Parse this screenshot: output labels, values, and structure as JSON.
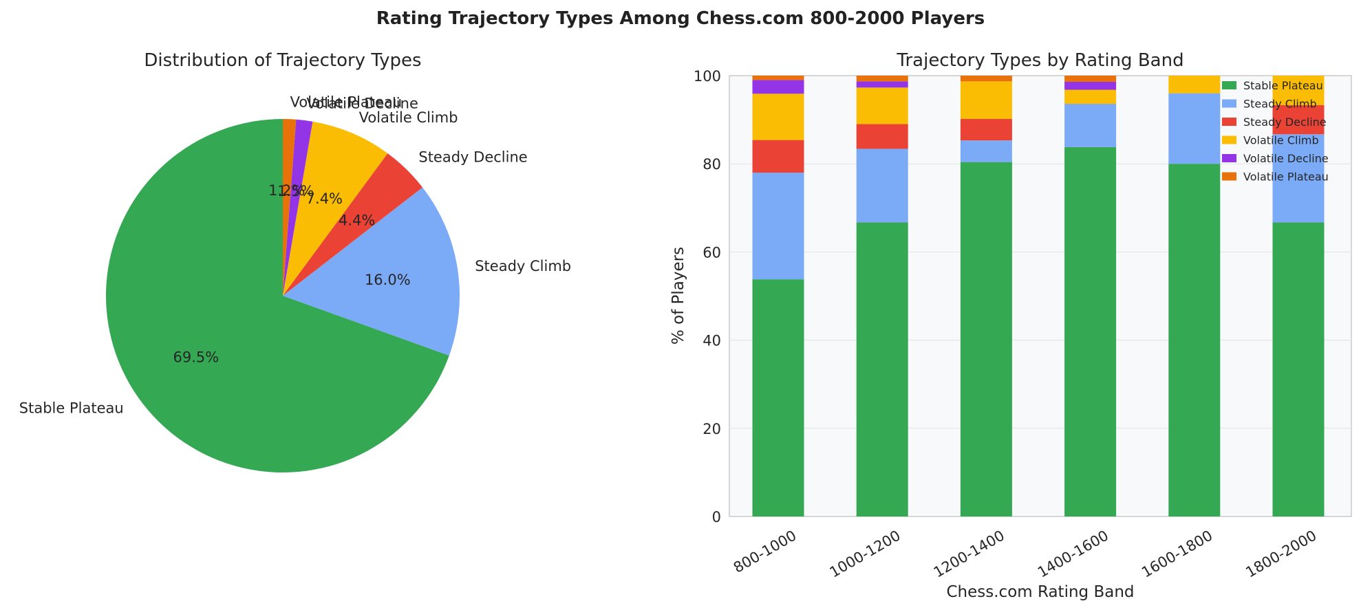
{
  "figure": {
    "suptitle": "Rating Trajectory Types Among Chess.com 800-2000 Players"
  },
  "chart_data": [
    {
      "type": "pie",
      "title": "Distribution of Trajectory Types",
      "labels": [
        "Stable Plateau",
        "Steady Climb",
        "Steady Decline",
        "Volatile Climb",
        "Volatile Decline",
        "Volatile Plateau"
      ],
      "values": [
        69.5,
        16.0,
        4.4,
        7.4,
        1.5,
        1.2
      ],
      "value_labels": [
        "69.5%",
        "16.0%",
        "4.4%",
        "7.4%",
        "1.5%",
        "1.2%"
      ],
      "colors": [
        "#34a853",
        "#7baaf7",
        "#ea4335",
        "#fbbc04",
        "#9334e6",
        "#e8710a"
      ]
    },
    {
      "type": "bar",
      "stacked": true,
      "title": "Trajectory Types by Rating Band",
      "xlabel": "Chess.com Rating Band",
      "ylabel": "% of Players",
      "ylim": [
        0,
        100
      ],
      "yticks": [
        0,
        20,
        40,
        60,
        80,
        100
      ],
      "categories": [
        "800-1000",
        "1000-1200",
        "1200-1400",
        "1400-1600",
        "1600-1800",
        "1800-2000"
      ],
      "series": [
        {
          "name": "Stable Plateau",
          "color": "#34a853",
          "values": [
            53.8,
            66.7,
            80.4,
            83.8,
            80.0,
            66.7
          ]
        },
        {
          "name": "Steady Climb",
          "color": "#7baaf7",
          "values": [
            24.2,
            16.7,
            4.9,
            9.8,
            16.0,
            20.0
          ]
        },
        {
          "name": "Steady Decline",
          "color": "#ea4335",
          "values": [
            7.4,
            5.6,
            4.9,
            0.0,
            0.0,
            6.6
          ]
        },
        {
          "name": "Volatile Climb",
          "color": "#fbbc04",
          "values": [
            10.5,
            8.3,
            8.5,
            3.2,
            4.0,
            6.7
          ]
        },
        {
          "name": "Volatile Decline",
          "color": "#9334e6",
          "values": [
            3.1,
            1.4,
            0.0,
            1.8,
            0.0,
            0.0
          ]
        },
        {
          "name": "Volatile Plateau",
          "color": "#e8710a",
          "values": [
            1.0,
            1.3,
            1.3,
            1.4,
            0.0,
            0.0
          ]
        }
      ],
      "legend": "top-right",
      "grid": true
    }
  ]
}
